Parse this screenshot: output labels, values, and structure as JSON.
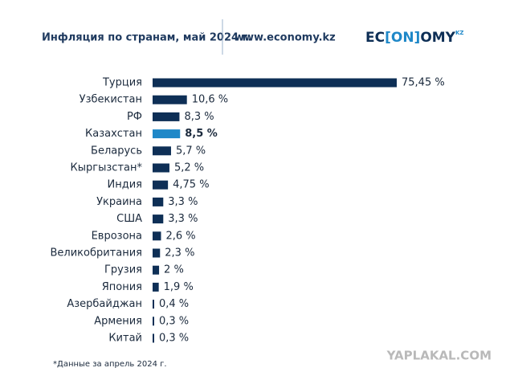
{
  "chart_data": {
    "type": "hbar",
    "title": "Инфляция по странам, май 2024 г.",
    "source_url": "www.economy.kz",
    "logo": [
      "EC",
      "[ON]",
      "OMY",
      "KZ"
    ],
    "footnote": "*Данные за апрель 2024 г.",
    "watermark": "YAPLAKAL.COM",
    "categories": [
      "Турция",
      "Узбекистан",
      "РФ",
      "Казахстан",
      "Беларусь",
      "Кыргызстан*",
      "Индия",
      "Украина",
      "США",
      "Еврозона",
      "Великобритания",
      "Грузия",
      "Япония",
      "Азербайджан",
      "Армения",
      "Китай"
    ],
    "values": [
      75.45,
      10.6,
      8.3,
      8.5,
      5.7,
      5.2,
      4.75,
      3.3,
      3.3,
      2.6,
      2.3,
      2,
      1.9,
      0.4,
      0.3,
      0.3
    ],
    "value_labels": [
      "75,45 %",
      "10,6 %",
      "8,3 %",
      "8,5 %",
      "5,7 %",
      "5,2 %",
      "4,75 %",
      "3,3 %",
      "3,3 %",
      "2,6 %",
      "2,3 %",
      "2 %",
      "1,9 %",
      "0,4 %",
      "0,3 %",
      "0,3 %"
    ],
    "colors": [
      "#0e2f56",
      "#0e2f56",
      "#0e2f56",
      "#1f88c8",
      "#0e2f56",
      "#0e2f56",
      "#0e2f56",
      "#0e2f56",
      "#0e2f56",
      "#0e2f56",
      "#0e2f56",
      "#0e2f56",
      "#0e2f56",
      "#0e2f56",
      "#0e2f56",
      "#0e2f56"
    ],
    "xlim": [
      0,
      75.45
    ]
  }
}
